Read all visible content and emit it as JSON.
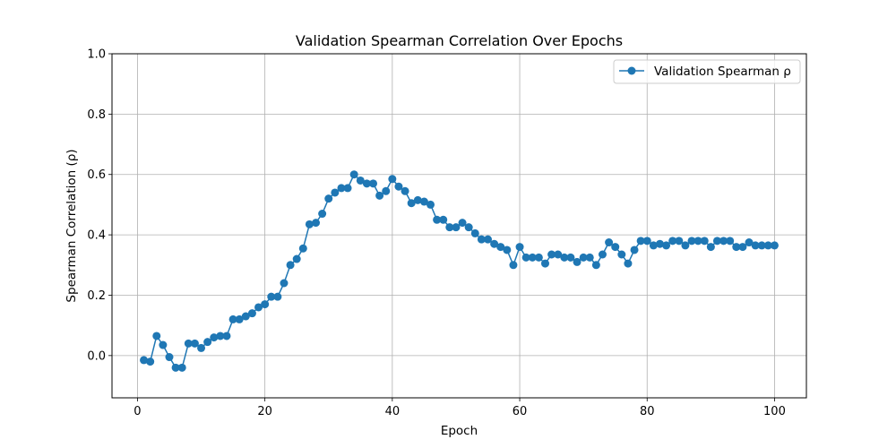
{
  "chart_data": {
    "type": "line",
    "title": "Validation Spearman Correlation Over Epochs",
    "xlabel": "Epoch",
    "ylabel": "Spearman Correlation (ρ)",
    "xlim": [
      -4,
      105
    ],
    "ylim": [
      -0.14,
      1.0
    ],
    "xticks": [
      0,
      20,
      40,
      60,
      80,
      100
    ],
    "yticks": [
      0.0,
      0.2,
      0.4,
      0.6,
      0.8,
      1.0
    ],
    "xtick_labels": [
      "0",
      "20",
      "40",
      "60",
      "80",
      "100"
    ],
    "ytick_labels": [
      "0.0",
      "0.2",
      "0.4",
      "0.6",
      "0.8",
      "1.0"
    ],
    "grid": true,
    "legend_position": "top-right",
    "series": [
      {
        "name": "Validation Spearman ρ",
        "color": "#1f77b4",
        "marker": "circle",
        "x": [
          1,
          2,
          3,
          4,
          5,
          6,
          7,
          8,
          9,
          10,
          11,
          12,
          13,
          14,
          15,
          16,
          17,
          18,
          19,
          20,
          21,
          22,
          23,
          24,
          25,
          26,
          27,
          28,
          29,
          30,
          31,
          32,
          33,
          34,
          35,
          36,
          37,
          38,
          39,
          40,
          41,
          42,
          43,
          44,
          45,
          46,
          47,
          48,
          49,
          50,
          51,
          52,
          53,
          54,
          55,
          56,
          57,
          58,
          59,
          60,
          61,
          62,
          63,
          64,
          65,
          66,
          67,
          68,
          69,
          70,
          71,
          72,
          73,
          74,
          75,
          76,
          77,
          78,
          79,
          80,
          81,
          82,
          83,
          84,
          85,
          86,
          87,
          88,
          89,
          90,
          91,
          92,
          93,
          94,
          95,
          96,
          97,
          98,
          99,
          100
        ],
        "values": [
          -0.015,
          -0.02,
          0.065,
          0.035,
          -0.005,
          -0.04,
          -0.04,
          0.04,
          0.04,
          0.025,
          0.045,
          0.06,
          0.065,
          0.065,
          0.12,
          0.12,
          0.13,
          0.14,
          0.16,
          0.17,
          0.195,
          0.195,
          0.24,
          0.3,
          0.32,
          0.355,
          0.435,
          0.44,
          0.47,
          0.52,
          0.54,
          0.555,
          0.555,
          0.6,
          0.58,
          0.57,
          0.57,
          0.53,
          0.545,
          0.585,
          0.56,
          0.545,
          0.505,
          0.515,
          0.51,
          0.5,
          0.45,
          0.45,
          0.425,
          0.425,
          0.44,
          0.425,
          0.405,
          0.385,
          0.385,
          0.37,
          0.36,
          0.35,
          0.3,
          0.36,
          0.325,
          0.325,
          0.325,
          0.305,
          0.335,
          0.335,
          0.325,
          0.325,
          0.31,
          0.325,
          0.325,
          0.3,
          0.335,
          0.375,
          0.36,
          0.335,
          0.305,
          0.35,
          0.38,
          0.38,
          0.365,
          0.37,
          0.365,
          0.38,
          0.38,
          0.365,
          0.38,
          0.38,
          0.38,
          0.36,
          0.38,
          0.38,
          0.38,
          0.36,
          0.36,
          0.375,
          0.365,
          0.365,
          0.365,
          0.365
        ]
      }
    ]
  }
}
